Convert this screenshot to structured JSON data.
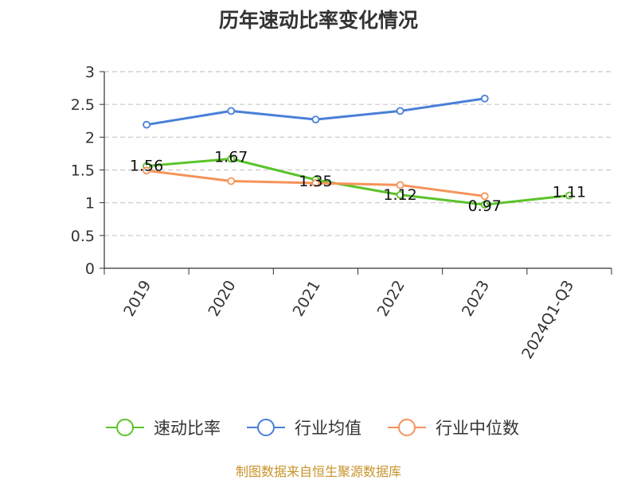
{
  "chart_data": {
    "type": "line",
    "title": "历年速动比率变化情况",
    "categories": [
      "2019",
      "2020",
      "2021",
      "2022",
      "2023",
      "2024Q1-Q3"
    ],
    "ylim": [
      0,
      3
    ],
    "yticks": [
      "0",
      "0.5",
      "1",
      "1.5",
      "2",
      "2.5",
      "3"
    ],
    "grid": true,
    "legend_position": "bottom",
    "series": [
      {
        "name": "速动比率",
        "color": "#5ac32a",
        "values": [
          1.56,
          1.67,
          1.35,
          1.12,
          0.97,
          1.11
        ],
        "labels": [
          "1.56",
          "1.67",
          "1.35",
          "1.12",
          "0.97",
          "1.11"
        ]
      },
      {
        "name": "行业均值",
        "color": "#4a7fd8",
        "values": [
          2.19,
          2.4,
          2.27,
          2.4,
          2.59,
          null
        ]
      },
      {
        "name": "行业中位数",
        "color": "#f5935a",
        "values": [
          1.49,
          1.33,
          1.3,
          1.27,
          1.1,
          null
        ]
      }
    ],
    "source": "制图数据来自恒生聚源数据库"
  }
}
